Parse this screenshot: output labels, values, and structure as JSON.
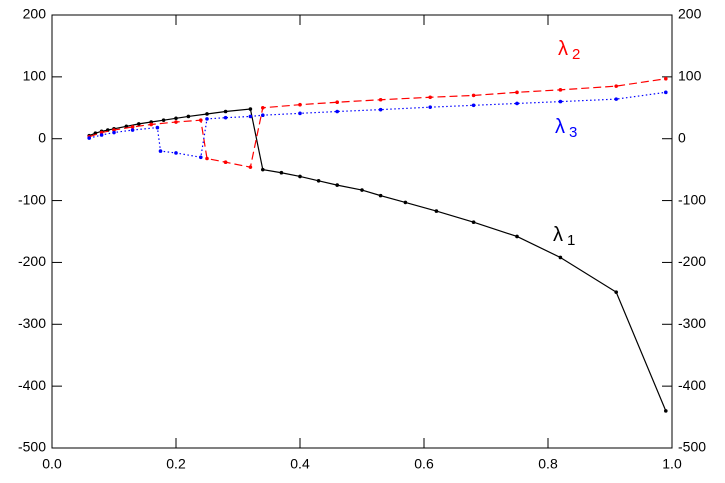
{
  "chart_data": {
    "type": "line",
    "xlim": [
      0,
      1
    ],
    "ylim": [
      -500,
      200
    ],
    "xticks": [
      {
        "value": 0,
        "label": "0.0"
      },
      0.2,
      0.4,
      0.6,
      0.8,
      {
        "value": 1,
        "label": "1.0"
      }
    ],
    "yticks": [
      200,
      100,
      0,
      -100,
      -200,
      -300,
      -400,
      -500
    ],
    "series": [
      {
        "name": "λ1",
        "color": "#000000",
        "dash": "solid",
        "x": [
          0.06,
          0.07,
          0.08,
          0.09,
          0.1,
          0.12,
          0.14,
          0.16,
          0.18,
          0.2,
          0.22,
          0.25,
          0.28,
          0.32,
          0.34,
          0.37,
          0.4,
          0.43,
          0.46,
          0.5,
          0.53,
          0.57,
          0.62,
          0.68,
          0.75,
          0.82,
          0.91,
          0.99
        ],
        "values": [
          5,
          9,
          12,
          14,
          16,
          20,
          24,
          27,
          30,
          33,
          36,
          40,
          44,
          48,
          -50,
          -55,
          -61,
          -68,
          -75,
          -83,
          -92,
          -103,
          -117,
          -135,
          -158,
          -192,
          -248,
          -440
        ]
      },
      {
        "name": "λ2",
        "color": "#ff0000",
        "dash": "dashed",
        "x": [
          0.06,
          0.08,
          0.1,
          0.13,
          0.16,
          0.2,
          0.24,
          0.25,
          0.28,
          0.32,
          0.34,
          0.4,
          0.46,
          0.53,
          0.61,
          0.68,
          0.75,
          0.82,
          0.91,
          0.99
        ],
        "values": [
          3,
          10,
          14,
          19,
          23,
          27,
          30,
          -32,
          -38,
          -46,
          50,
          55,
          59,
          63,
          67,
          70,
          75,
          79,
          85,
          97
        ]
      },
      {
        "name": "λ3",
        "color": "#0000ff",
        "dash": "dotted",
        "x": [
          0.06,
          0.08,
          0.1,
          0.13,
          0.17,
          0.175,
          0.2,
          0.24,
          0.25,
          0.28,
          0.32,
          0.34,
          0.4,
          0.46,
          0.53,
          0.61,
          0.68,
          0.75,
          0.82,
          0.91,
          0.99
        ],
        "values": [
          1,
          6,
          10,
          14,
          18,
          -20,
          -23,
          -30,
          32,
          34,
          36,
          38,
          41,
          44,
          47,
          51,
          54,
          57,
          60,
          64,
          75
        ]
      }
    ]
  }
}
